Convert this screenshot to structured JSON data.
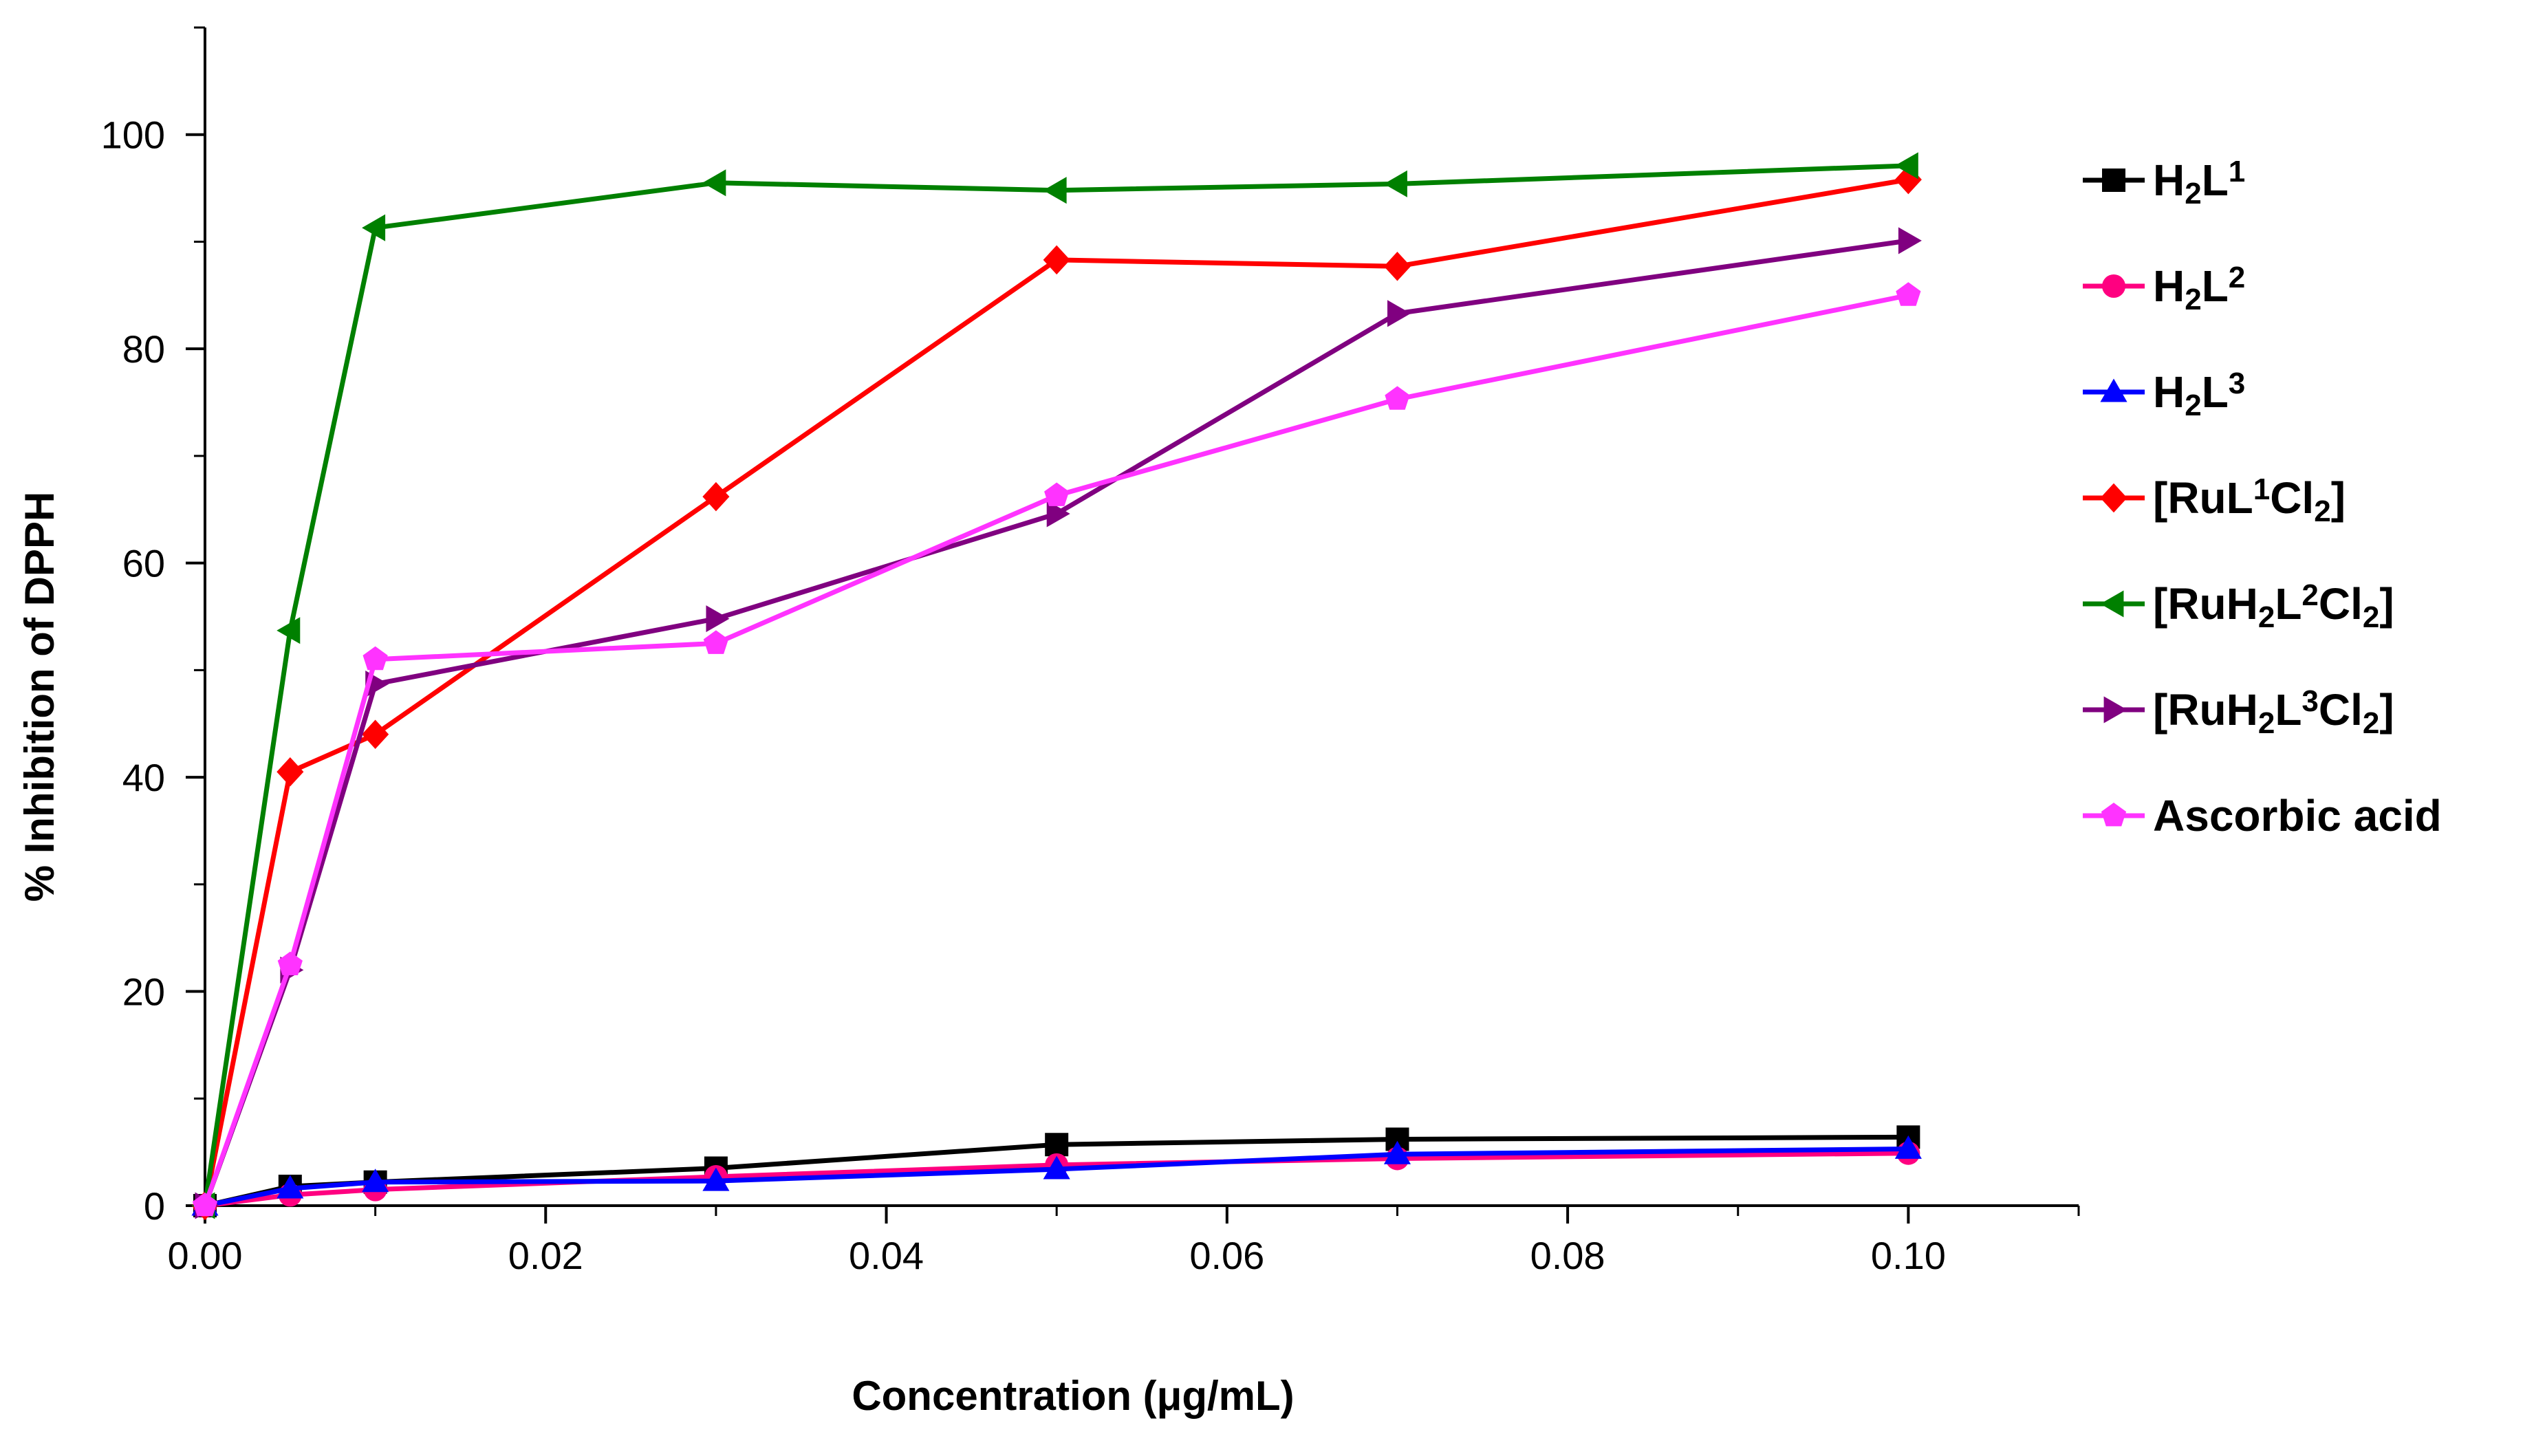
{
  "chart_data": {
    "type": "line",
    "title": "",
    "xlabel": "Concentration (μg/mL)",
    "ylabel": "% Inhibition of DPPH",
    "xlim": [
      0,
      0.11
    ],
    "ylim": [
      0,
      110
    ],
    "xticks": [
      0,
      0.02,
      0.04,
      0.06,
      0.08,
      0.1
    ],
    "xtick_labels": [
      "0.00",
      "0.02",
      "0.04",
      "0.06",
      "0.08",
      "0.10"
    ],
    "yticks": [
      0,
      20,
      40,
      60,
      80,
      100
    ],
    "ytick_labels": [
      "0",
      "20",
      "40",
      "60",
      "80",
      "100"
    ],
    "grid": false,
    "legend_position": "right",
    "x": [
      0,
      0.005,
      0.01,
      0.03,
      0.05,
      0.07,
      0.1
    ],
    "series": [
      {
        "name": "H2L1",
        "label": {
          "base": "H",
          "sub1": "2",
          "mid": "L",
          "sup": "1",
          "end": ""
        },
        "color": "#000000",
        "marker": "square",
        "values": [
          0,
          1.8,
          2.2,
          3.5,
          5.7,
          6.2,
          6.4
        ]
      },
      {
        "name": "H2L2",
        "label": {
          "base": "H",
          "sub1": "2",
          "mid": "L",
          "sup": "2",
          "end": ""
        },
        "color": "#ff0080",
        "marker": "circle",
        "values": [
          0,
          1.0,
          1.5,
          2.7,
          3.8,
          4.4,
          4.9
        ]
      },
      {
        "name": "H2L3",
        "label": {
          "base": "H",
          "sub1": "2",
          "mid": "L",
          "sup": "3",
          "end": ""
        },
        "color": "#0000ff",
        "marker": "triangle-up",
        "values": [
          0,
          1.6,
          2.2,
          2.3,
          3.4,
          4.8,
          5.3
        ]
      },
      {
        "name": "[RuL1Cl2]",
        "label": {
          "base": "[RuL",
          "sup": "1",
          "mid2": "Cl",
          "sub2": "2",
          "end": "]"
        },
        "color": "#ff0000",
        "marker": "diamond",
        "values": [
          0,
          40.5,
          44.0,
          66.2,
          88.3,
          87.7,
          95.8
        ]
      },
      {
        "name": "[RuH2L2Cl2]",
        "label": {
          "base": "[RuH",
          "sub1": "2",
          "mid": "L",
          "sup": "2",
          "mid2": "Cl",
          "sub2": "2",
          "end": "]"
        },
        "color": "#008000",
        "marker": "triangle-left",
        "values": [
          0,
          53.7,
          91.3,
          95.5,
          94.8,
          95.4,
          97.1
        ]
      },
      {
        "name": "[RuH2L3Cl2]",
        "label": {
          "base": "[RuH",
          "sub1": "2",
          "mid": "L",
          "sup": "3",
          "mid2": "Cl",
          "sub2": "2",
          "end": "]"
        },
        "color": "#800080",
        "marker": "triangle-right",
        "values": [
          0,
          22.0,
          48.7,
          54.8,
          64.6,
          83.3,
          90.1
        ]
      },
      {
        "name": "Ascorbic acid",
        "label": {
          "base": "Ascorbic acid"
        },
        "color": "#ff33ff",
        "marker": "pentagon",
        "values": [
          0,
          22.5,
          51.0,
          52.5,
          66.3,
          75.3,
          85.0
        ]
      }
    ]
  }
}
